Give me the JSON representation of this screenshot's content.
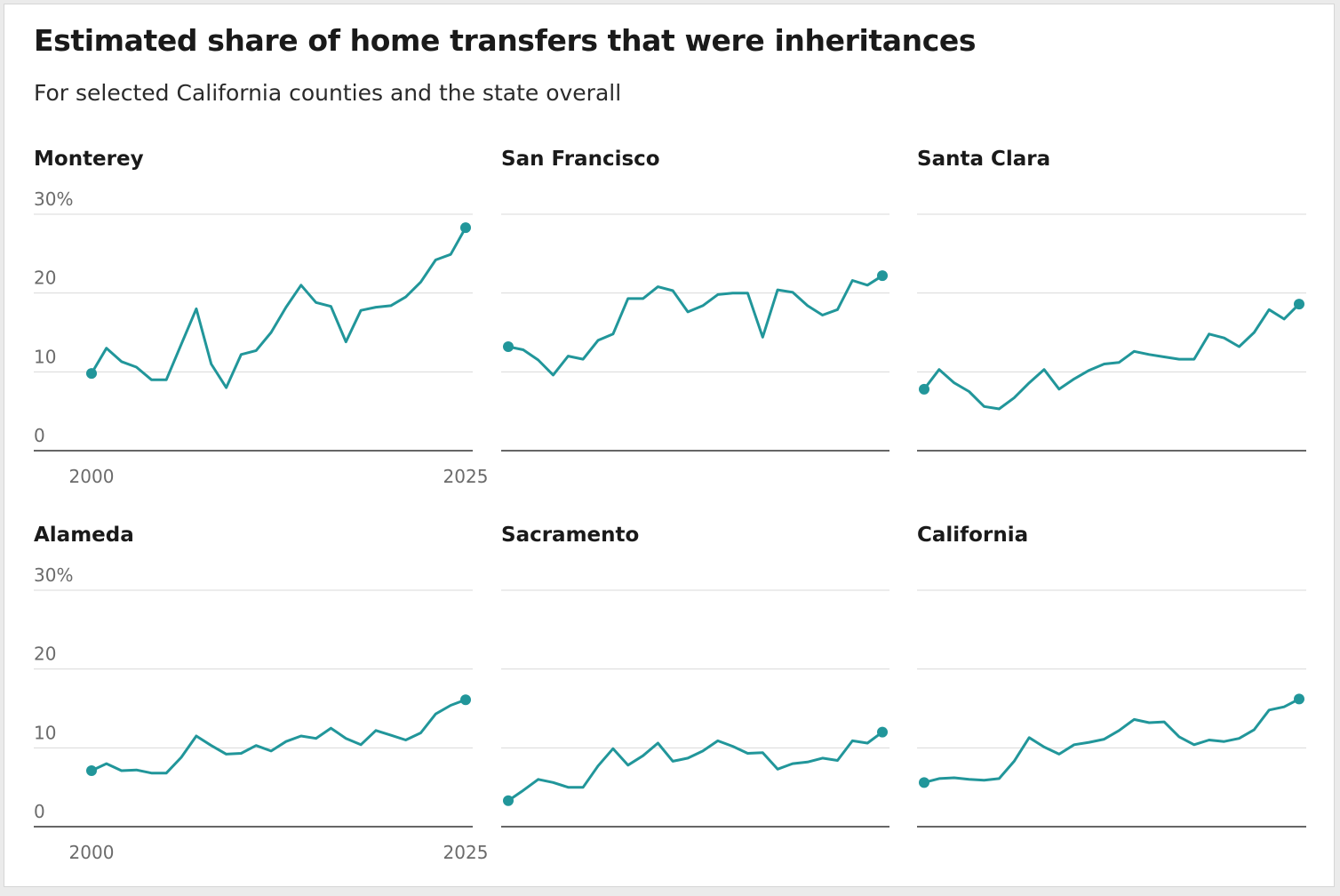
{
  "title": "Estimated share of home transfers that were inheritances",
  "subtitle": "For selected California counties and the state overall",
  "colors": {
    "line": "#21969a",
    "grid": "#dadada",
    "axis": "#333333",
    "text": "#1a1a1a",
    "tick": "#6b6b6b"
  },
  "chart_data": [
    {
      "type": "line",
      "title": "Monterey",
      "x": [
        2000,
        2001,
        2002,
        2003,
        2004,
        2005,
        2006,
        2007,
        2008,
        2009,
        2010,
        2011,
        2012,
        2013,
        2014,
        2015,
        2016,
        2017,
        2018,
        2019,
        2020,
        2021,
        2022,
        2023,
        2024,
        2025
      ],
      "values": [
        9.8,
        13.0,
        11.3,
        10.6,
        9.0,
        9.0,
        13.5,
        18.0,
        11.0,
        8.0,
        12.2,
        12.7,
        15.0,
        18.2,
        21.0,
        18.8,
        18.3,
        13.8,
        17.8,
        18.2,
        18.4,
        19.5,
        21.4,
        24.2,
        24.9,
        28.3
      ],
      "y_ticks": [
        "0",
        "10",
        "20",
        "30%"
      ],
      "x_ticks": [
        "2000",
        "2025"
      ],
      "ylim": [
        0,
        30
      ],
      "xlim": [
        2000,
        2025
      ],
      "grid": true
    },
    {
      "type": "line",
      "title": "San Francisco",
      "x": [
        2000,
        2001,
        2002,
        2003,
        2004,
        2005,
        2006,
        2007,
        2008,
        2009,
        2010,
        2011,
        2012,
        2013,
        2014,
        2015,
        2016,
        2017,
        2018,
        2019,
        2020,
        2021,
        2022,
        2023,
        2024,
        2025
      ],
      "values": [
        13.2,
        12.8,
        11.5,
        9.6,
        12.0,
        11.6,
        14.0,
        14.8,
        19.3,
        19.3,
        20.8,
        20.3,
        17.6,
        18.4,
        19.8,
        20.0,
        20.0,
        14.4,
        20.4,
        20.1,
        18.4,
        17.2,
        17.9,
        21.6,
        21.0,
        22.2
      ],
      "y_ticks": [],
      "x_ticks": [],
      "ylim": [
        0,
        30
      ],
      "xlim": [
        2000,
        2025
      ],
      "grid": true
    },
    {
      "type": "line",
      "title": "Santa Clara",
      "x": [
        2000,
        2001,
        2002,
        2003,
        2004,
        2005,
        2006,
        2007,
        2008,
        2009,
        2010,
        2011,
        2012,
        2013,
        2014,
        2015,
        2016,
        2017,
        2018,
        2019,
        2020,
        2021,
        2022,
        2023,
        2024,
        2025
      ],
      "values": [
        7.8,
        10.3,
        8.6,
        7.5,
        5.6,
        5.3,
        6.7,
        8.6,
        10.3,
        7.8,
        9.1,
        10.2,
        11.0,
        11.2,
        12.6,
        12.2,
        11.9,
        11.6,
        11.6,
        14.8,
        14.3,
        13.2,
        15.0,
        17.9,
        16.7,
        18.6
      ],
      "y_ticks": [],
      "x_ticks": [],
      "ylim": [
        0,
        30
      ],
      "xlim": [
        2000,
        2025
      ],
      "grid": true
    },
    {
      "type": "line",
      "title": "Alameda",
      "x": [
        2000,
        2001,
        2002,
        2003,
        2004,
        2005,
        2006,
        2007,
        2008,
        2009,
        2010,
        2011,
        2012,
        2013,
        2014,
        2015,
        2016,
        2017,
        2018,
        2019,
        2020,
        2021,
        2022,
        2023,
        2024,
        2025
      ],
      "values": [
        7.1,
        8.0,
        7.1,
        7.2,
        6.8,
        6.8,
        8.8,
        11.5,
        10.3,
        9.2,
        9.3,
        10.3,
        9.6,
        10.8,
        11.5,
        11.2,
        12.5,
        11.2,
        10.4,
        12.2,
        11.6,
        11.0,
        11.9,
        14.3,
        15.4,
        16.1
      ],
      "y_ticks": [
        "0",
        "10",
        "20",
        "30%"
      ],
      "x_ticks": [
        "2000",
        "2025"
      ],
      "ylim": [
        0,
        30
      ],
      "xlim": [
        2000,
        2025
      ],
      "grid": true
    },
    {
      "type": "line",
      "title": "Sacramento",
      "x": [
        2000,
        2001,
        2002,
        2003,
        2004,
        2005,
        2006,
        2007,
        2008,
        2009,
        2010,
        2011,
        2012,
        2013,
        2014,
        2015,
        2016,
        2017,
        2018,
        2019,
        2020,
        2021,
        2022,
        2023,
        2024,
        2025
      ],
      "values": [
        3.3,
        4.6,
        6.0,
        5.6,
        5.0,
        5.0,
        7.7,
        9.9,
        7.8,
        9.0,
        10.6,
        8.3,
        8.7,
        9.6,
        10.9,
        10.2,
        9.3,
        9.4,
        7.3,
        8.0,
        8.2,
        8.7,
        8.4,
        10.9,
        10.6,
        12.0
      ],
      "y_ticks": [],
      "x_ticks": [],
      "ylim": [
        0,
        30
      ],
      "xlim": [
        2000,
        2025
      ],
      "grid": true
    },
    {
      "type": "line",
      "title": "California",
      "x": [
        2000,
        2001,
        2002,
        2003,
        2004,
        2005,
        2006,
        2007,
        2008,
        2009,
        2010,
        2011,
        2012,
        2013,
        2014,
        2015,
        2016,
        2017,
        2018,
        2019,
        2020,
        2021,
        2022,
        2023,
        2024,
        2025
      ],
      "values": [
        5.6,
        6.1,
        6.2,
        6.0,
        5.9,
        6.1,
        8.3,
        11.3,
        10.1,
        9.2,
        10.4,
        10.7,
        11.1,
        12.2,
        13.6,
        13.2,
        13.3,
        11.4,
        10.4,
        11.0,
        10.8,
        11.2,
        12.3,
        14.8,
        15.2,
        16.2
      ],
      "y_ticks": [],
      "x_ticks": [],
      "ylim": [
        0,
        30
      ],
      "xlim": [
        2000,
        2025
      ],
      "grid": true
    }
  ]
}
